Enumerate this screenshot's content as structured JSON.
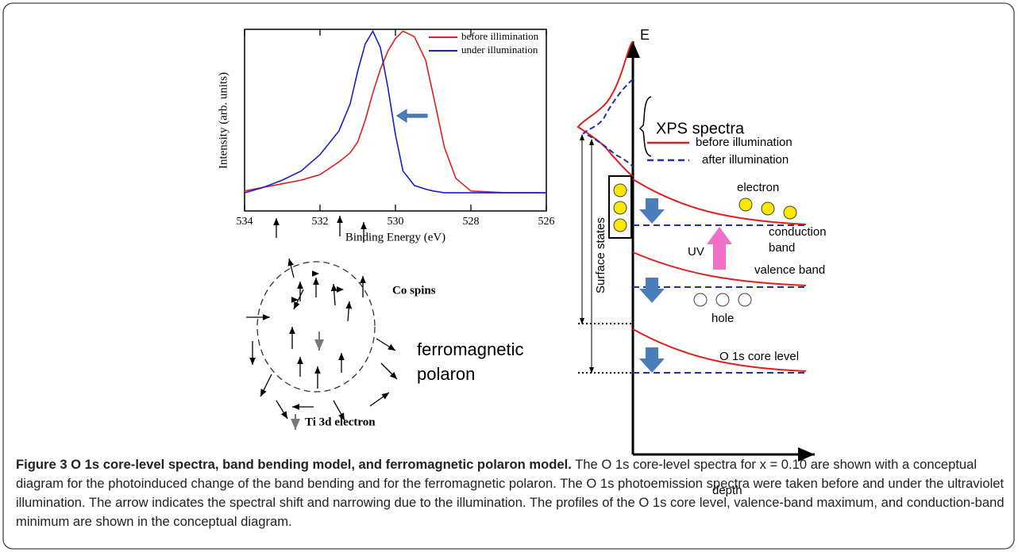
{
  "chart_data": {
    "type": "line",
    "xlabel": "Binding Energy (eV)",
    "ylabel": "Intensity (arb. units)",
    "x": [
      534,
      533.5,
      533,
      532.5,
      532,
      531.5,
      531.2,
      531,
      530.8,
      530.6,
      530.4,
      530.2,
      530,
      529.8,
      529.5,
      529.2,
      529,
      528.7,
      528.4,
      528,
      527,
      526
    ],
    "series": [
      {
        "name": "before illimination",
        "color": "#e0201c",
        "values": [
          0.11,
          0.13,
          0.15,
          0.17,
          0.2,
          0.27,
          0.32,
          0.38,
          0.5,
          0.65,
          0.78,
          0.88,
          0.95,
          0.99,
          0.96,
          0.83,
          0.64,
          0.35,
          0.18,
          0.11,
          0.1,
          0.1
        ]
      },
      {
        "name": "under illumination",
        "color": "#1c1ccc",
        "values": [
          0.1,
          0.13,
          0.17,
          0.22,
          0.31,
          0.44,
          0.59,
          0.77,
          0.92,
          0.99,
          0.9,
          0.68,
          0.42,
          0.22,
          0.14,
          0.12,
          0.11,
          0.1,
          0.1,
          0.1,
          0.1,
          0.1
        ]
      }
    ],
    "xlim": [
      534,
      526
    ],
    "xticks": [
      534,
      532,
      530,
      528,
      526
    ],
    "ylim": [
      0,
      1
    ]
  },
  "band_diagram": {
    "axis_e": "E",
    "xps": "XPS spectra",
    "legend_before": "before illumination",
    "legend_after": "after illumination",
    "surface_states": "Surface states",
    "electron": "electron",
    "conduction_1": "conduction",
    "conduction_2": "band",
    "uv": "UV",
    "valence": "valence band",
    "hole": "hole",
    "core": "O 1s core level",
    "depth": "depth"
  },
  "polaron_diagram": {
    "co_spins": "Co spins",
    "polaron_1": "ferromagnetic",
    "polaron_2": "polaron",
    "ti": "Ti 3d electron"
  },
  "caption": {
    "title": "Figure 3 O 1s core-level spectra, band bending model, and ferromagnetic polaron model.",
    "body": "The O 1s core-level spectra for x = 0.10 are shown with a conceptual diagram for the photoinduced change of the band bending and for the ferromagnetic polaron. The O 1s photoemission spectra were taken before and under the ultraviolet illumination. The arrow indicates the spectral shift and narrowing due to the illumination. The profiles of the O 1s core level, valence-band maximum, and conduction-band minimum are shown in the conceptual diagram."
  }
}
